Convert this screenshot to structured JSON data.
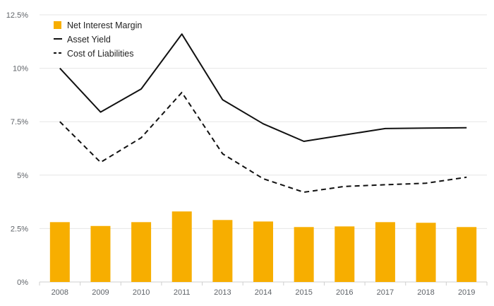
{
  "chart_data": {
    "type": "bar",
    "categories": [
      "2008",
      "2009",
      "2010",
      "2011",
      "2013",
      "2014",
      "2015",
      "2016",
      "2017",
      "2018",
      "2019"
    ],
    "series": [
      {
        "name": "Net Interest Margin",
        "kind": "bar",
        "values": [
          2.8,
          2.62,
          2.8,
          3.3,
          2.9,
          2.83,
          2.57,
          2.6,
          2.8,
          2.77,
          2.57
        ]
      },
      {
        "name": "Asset Yield",
        "kind": "line",
        "dash": "solid",
        "values": [
          10.0,
          7.95,
          9.03,
          11.6,
          8.53,
          7.4,
          6.58,
          6.88,
          7.18,
          7.2,
          7.22
        ]
      },
      {
        "name": "Cost of Liabilities",
        "kind": "line",
        "dash": "dashed",
        "values": [
          7.5,
          5.6,
          6.75,
          8.87,
          6.0,
          4.83,
          4.2,
          4.47,
          4.55,
          4.62,
          4.9
        ]
      }
    ],
    "ylim": [
      0,
      12.5
    ],
    "yticks": [
      {
        "value": 0,
        "label": "0%"
      },
      {
        "value": 2.5,
        "label": "2.5%"
      },
      {
        "value": 5,
        "label": "5%"
      },
      {
        "value": 7.5,
        "label": "7.5%"
      },
      {
        "value": 10,
        "label": "10%"
      },
      {
        "value": 12.5,
        "label": "12.5%"
      }
    ],
    "grid": true,
    "legend_position": "top-left",
    "colors": {
      "bar": "#f7ae00",
      "line": "#111111",
      "grid": "#e6e6e6",
      "axis_text": "#5f6368"
    }
  }
}
